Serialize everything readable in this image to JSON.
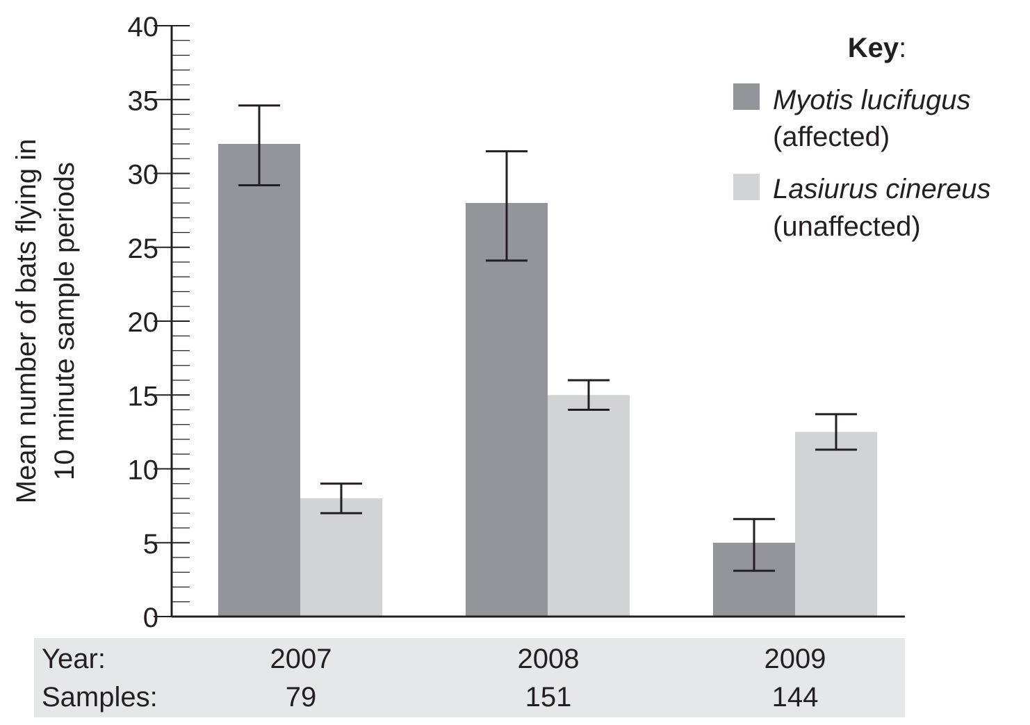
{
  "chart_data": {
    "type": "bar",
    "ylabel_line1": "Mean number of bats flying in",
    "ylabel_line2": "10 minute sample periods",
    "ylim": [
      0,
      40
    ],
    "y_ticks": [
      0,
      5,
      10,
      15,
      20,
      25,
      30,
      35,
      40
    ],
    "y_minor_step": 1,
    "grid": false,
    "legend_title": "Key",
    "legend_title_suffix": ":",
    "legend_position": "top-right",
    "categories": [
      "2007",
      "2008",
      "2009"
    ],
    "table": {
      "row1_label": "Year:",
      "row2_label": "Samples:",
      "years": [
        "2007",
        "2008",
        "2009"
      ],
      "samples": [
        "79",
        "151",
        "144"
      ]
    },
    "series": [
      {
        "name": "Myotis lucifugus",
        "status": "(affected)",
        "color": "#939598",
        "values": [
          32,
          28,
          5
        ],
        "error_low": [
          29.2,
          24.1,
          3.1
        ],
        "error_high": [
          34.6,
          31.5,
          6.6
        ]
      },
      {
        "name": "Lasiurus cinereus",
        "status": "(unaffected)",
        "color": "#d1d3d4",
        "values": [
          8,
          15,
          12.5
        ],
        "error_low": [
          7,
          14,
          11.3
        ],
        "error_high": [
          9,
          16,
          13.7
        ]
      }
    ],
    "table_background": "#e6e7e8",
    "ink_color": "#231f20"
  }
}
